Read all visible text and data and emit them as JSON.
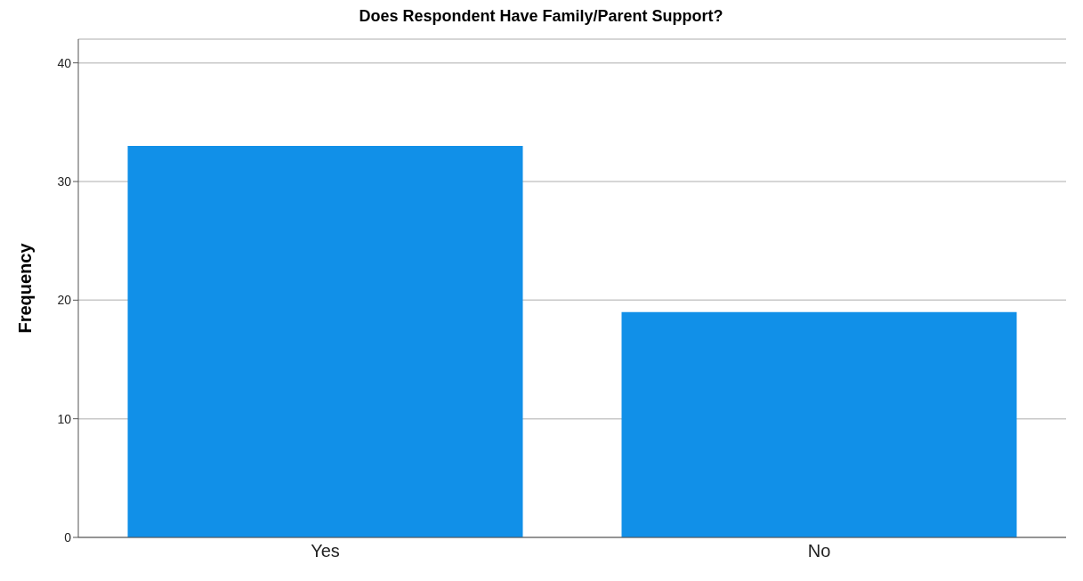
{
  "chart_data": {
    "type": "bar",
    "title": "Does Respondent Have Family/Parent Support?",
    "ylabel": "Frequency",
    "categories": [
      "Yes",
      "No"
    ],
    "values": [
      33,
      19
    ],
    "color": "#1190e8",
    "ylim": [
      0,
      42
    ],
    "yticks": [
      0,
      10,
      20,
      30,
      40
    ],
    "grid": "y"
  }
}
